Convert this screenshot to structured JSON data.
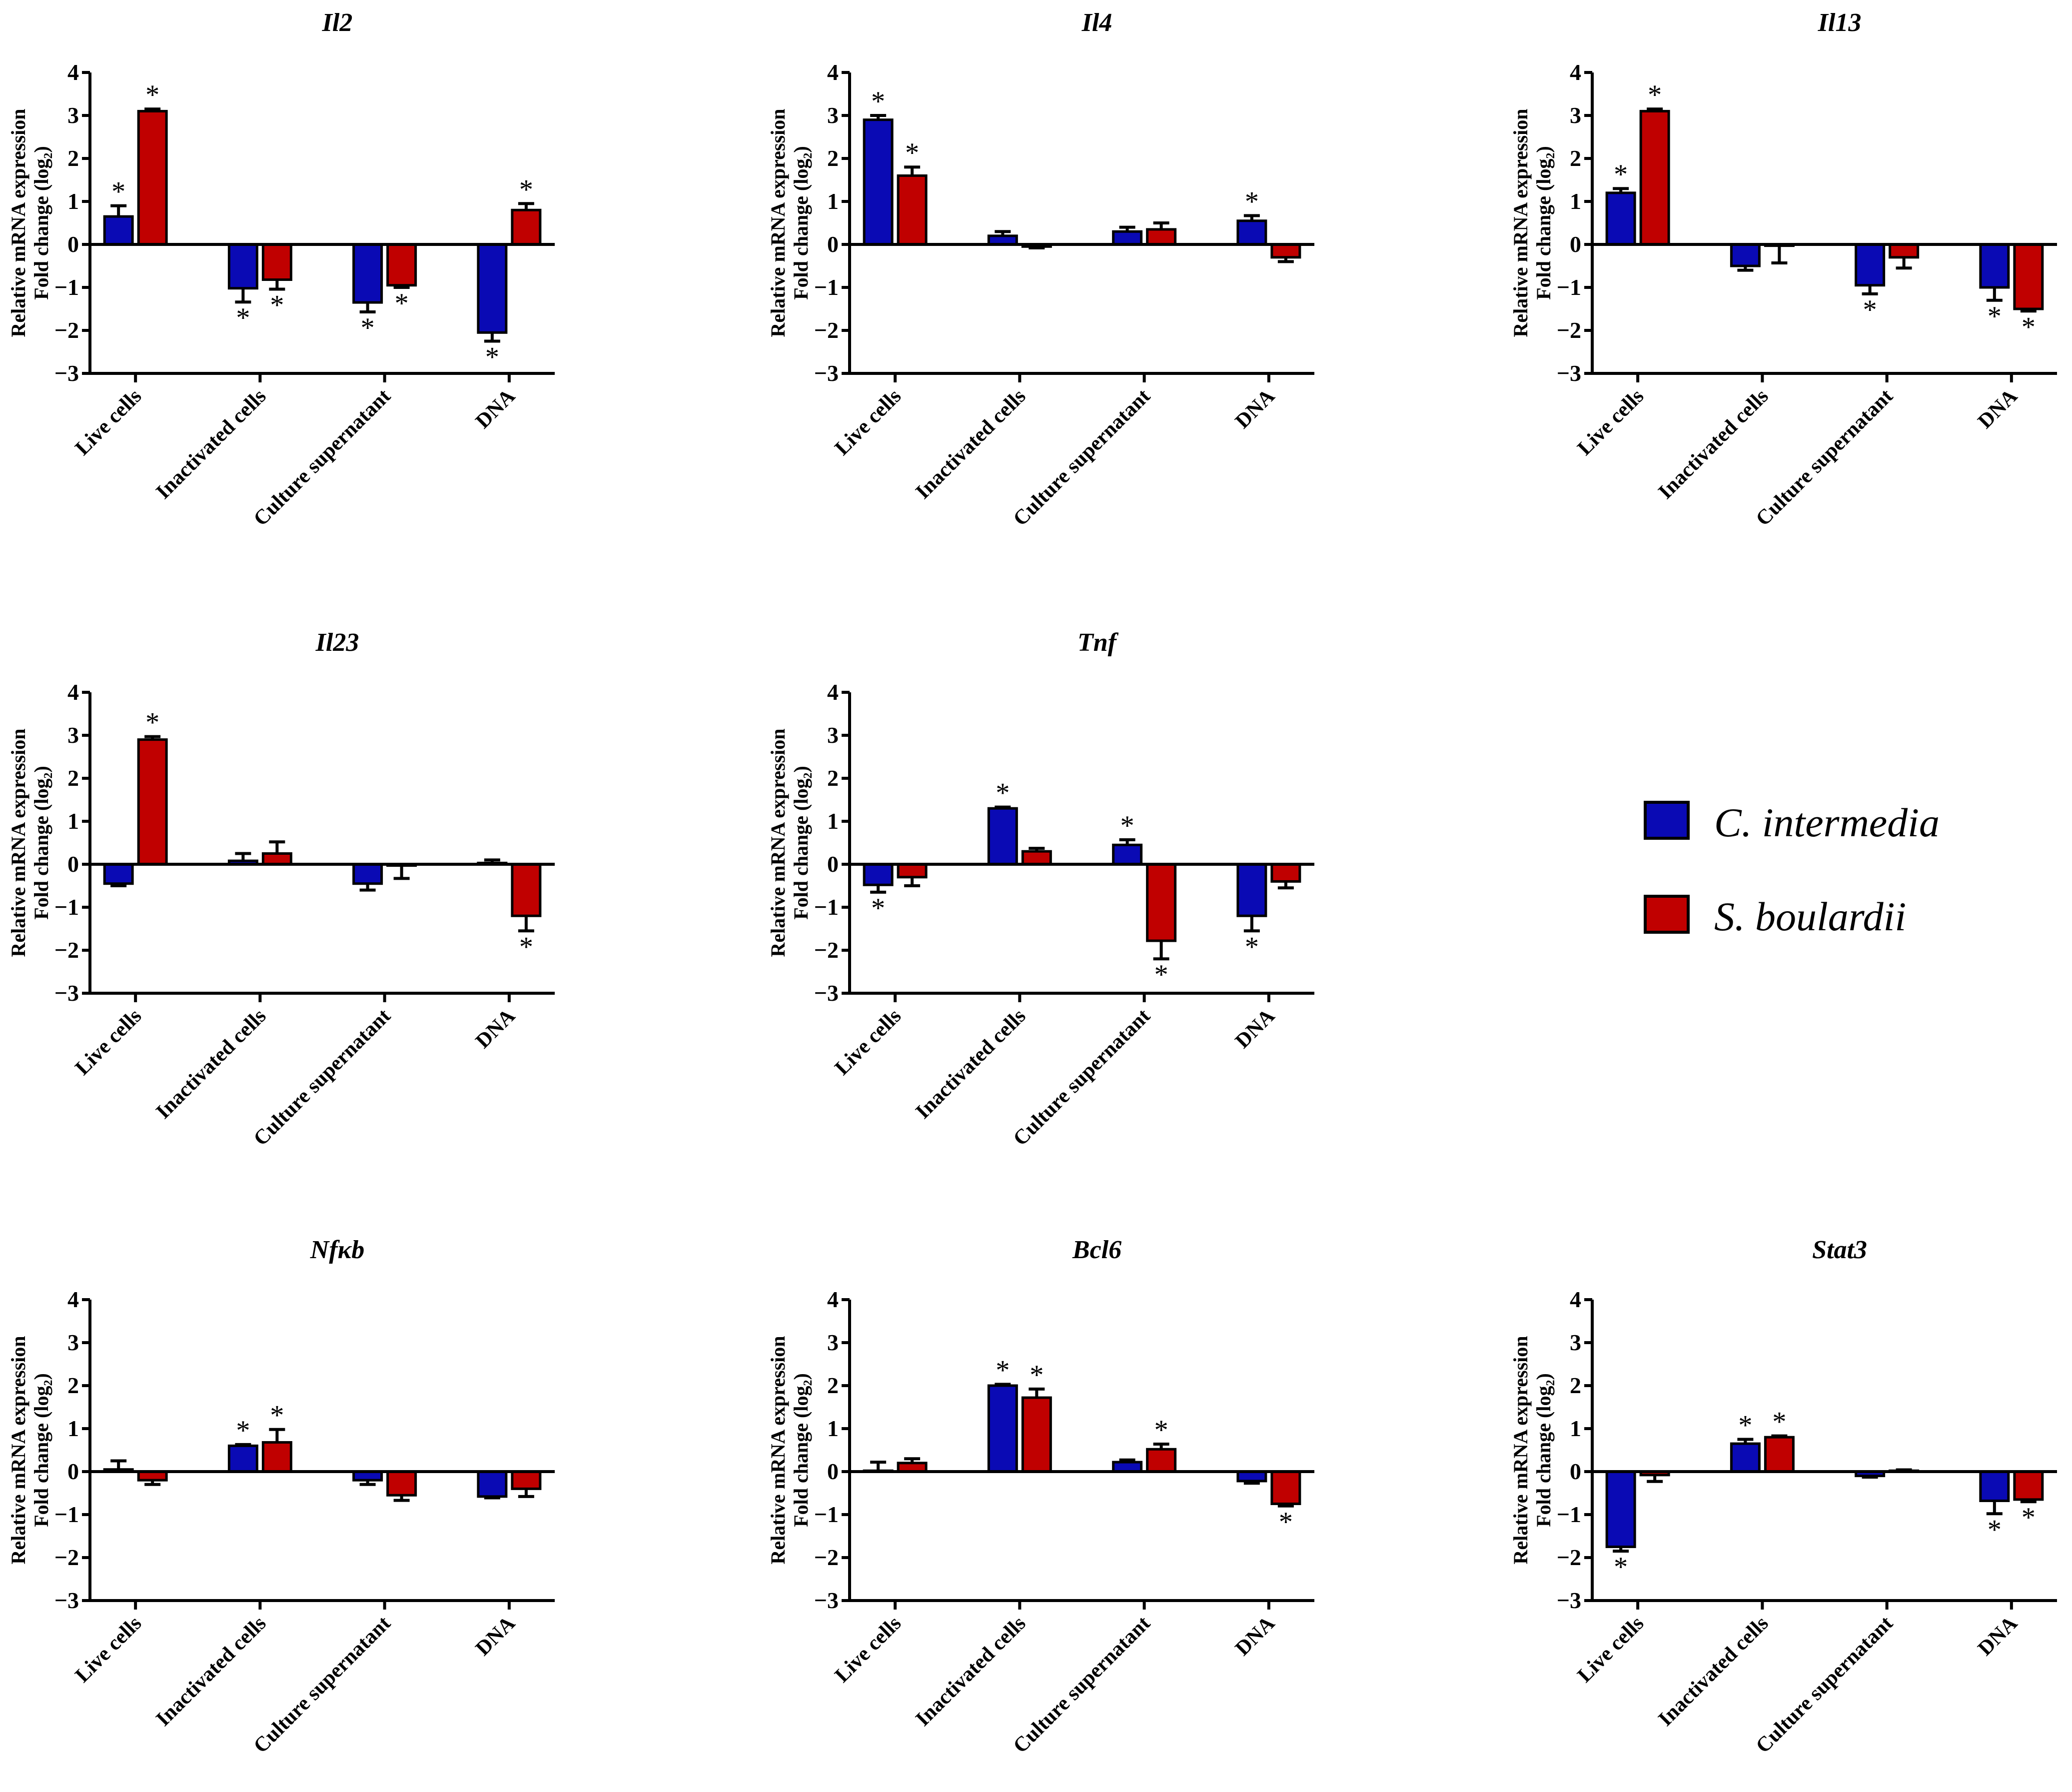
{
  "chart_data": {
    "type": "bar",
    "categories": [
      "Live cells",
      "Inactivated cells",
      "Culture supernatant",
      "DNA"
    ],
    "ylabel": [
      "Relative mRNA expression",
      "Fold change (log₂)"
    ],
    "ylim": [
      -3,
      4
    ],
    "yticks": [
      -3,
      -2,
      -1,
      0,
      1,
      2,
      3,
      4
    ],
    "significance_marker": "*",
    "legend": {
      "placement": "right",
      "entries": [
        {
          "name": "C. intermedia",
          "color": "#0a0ab4"
        },
        {
          "name": "S. boulardii",
          "color": "#c00000"
        }
      ]
    },
    "panels": [
      {
        "title": "Il2",
        "series": [
          {
            "name": "C. intermedia",
            "values": [
              0.65,
              -1.02,
              -1.35,
              -2.05
            ],
            "errors": [
              0.25,
              0.32,
              0.22,
              0.2
            ],
            "significant": [
              true,
              true,
              true,
              true
            ]
          },
          {
            "name": "S. boulardii",
            "values": [
              3.1,
              -0.82,
              -0.95,
              0.8
            ],
            "errors": [
              0.05,
              0.22,
              0.05,
              0.15
            ],
            "significant": [
              true,
              true,
              true,
              true
            ]
          }
        ]
      },
      {
        "title": "Il4",
        "series": [
          {
            "name": "C. intermedia",
            "values": [
              2.9,
              0.2,
              0.3,
              0.55
            ],
            "errors": [
              0.1,
              0.1,
              0.1,
              0.12
            ],
            "significant": [
              true,
              false,
              false,
              true
            ]
          },
          {
            "name": "S. boulardii",
            "values": [
              1.6,
              -0.05,
              0.35,
              -0.3
            ],
            "errors": [
              0.2,
              0.03,
              0.15,
              0.1
            ],
            "significant": [
              true,
              false,
              false,
              false
            ]
          }
        ]
      },
      {
        "title": "Il13",
        "series": [
          {
            "name": "C. intermedia",
            "values": [
              1.2,
              -0.5,
              -0.95,
              -1.0
            ],
            "errors": [
              0.1,
              0.1,
              0.2,
              0.3
            ],
            "significant": [
              true,
              false,
              true,
              true
            ]
          },
          {
            "name": "S. boulardii",
            "values": [
              3.1,
              -0.03,
              -0.3,
              -1.5
            ],
            "errors": [
              0.05,
              0.4,
              0.25,
              0.05
            ],
            "significant": [
              true,
              false,
              false,
              true
            ]
          }
        ]
      },
      {
        "title": "Il23",
        "series": [
          {
            "name": "C. intermedia",
            "values": [
              -0.45,
              0.08,
              -0.45,
              0.03
            ],
            "errors": [
              0.05,
              0.17,
              0.15,
              0.07
            ],
            "significant": [
              false,
              false,
              false,
              false
            ]
          },
          {
            "name": "S. boulardii",
            "values": [
              2.9,
              0.25,
              -0.03,
              -1.2
            ],
            "errors": [
              0.07,
              0.27,
              0.3,
              0.35
            ],
            "significant": [
              true,
              false,
              false,
              true
            ]
          }
        ]
      },
      {
        "title": "Tnf",
        "series": [
          {
            "name": "C. intermedia",
            "values": [
              -0.48,
              1.3,
              0.45,
              -1.2
            ],
            "errors": [
              0.17,
              0.03,
              0.12,
              0.35
            ],
            "significant": [
              true,
              true,
              true,
              true
            ]
          },
          {
            "name": "S. boulardii",
            "values": [
              -0.3,
              0.3,
              -1.78,
              -0.4
            ],
            "errors": [
              0.2,
              0.07,
              0.42,
              0.15
            ],
            "significant": [
              false,
              false,
              true,
              false
            ]
          }
        ]
      },
      {
        "title": "Nfκb",
        "series": [
          {
            "name": "C. intermedia",
            "values": [
              0.05,
              0.6,
              -0.2,
              -0.58
            ],
            "errors": [
              0.2,
              0.03,
              0.1,
              0.03
            ],
            "significant": [
              false,
              true,
              false,
              false
            ]
          },
          {
            "name": "S. boulardii",
            "values": [
              -0.2,
              0.68,
              -0.55,
              -0.4
            ],
            "errors": [
              0.1,
              0.3,
              0.12,
              0.18
            ],
            "significant": [
              false,
              true,
              false,
              false
            ]
          }
        ]
      },
      {
        "title": "Bcl6",
        "series": [
          {
            "name": "C. intermedia",
            "values": [
              0.02,
              2.0,
              0.22,
              -0.22
            ],
            "errors": [
              0.2,
              0.03,
              0.05,
              0.05
            ],
            "significant": [
              false,
              true,
              false,
              false
            ]
          },
          {
            "name": "S. boulardii",
            "values": [
              0.2,
              1.72,
              0.52,
              -0.75
            ],
            "errors": [
              0.1,
              0.2,
              0.12,
              0.05
            ],
            "significant": [
              false,
              true,
              true,
              true
            ]
          }
        ]
      },
      {
        "title": "Stat3",
        "series": [
          {
            "name": "C. intermedia",
            "values": [
              -1.75,
              0.65,
              -0.1,
              -0.68
            ],
            "errors": [
              0.1,
              0.1,
              0.03,
              0.3
            ],
            "significant": [
              true,
              true,
              false,
              true
            ]
          },
          {
            "name": "S. boulardii",
            "values": [
              -0.08,
              0.8,
              0.02,
              -0.65
            ],
            "errors": [
              0.15,
              0.03,
              0.02,
              0.05
            ],
            "significant": [
              false,
              true,
              false,
              true
            ]
          }
        ]
      }
    ]
  }
}
